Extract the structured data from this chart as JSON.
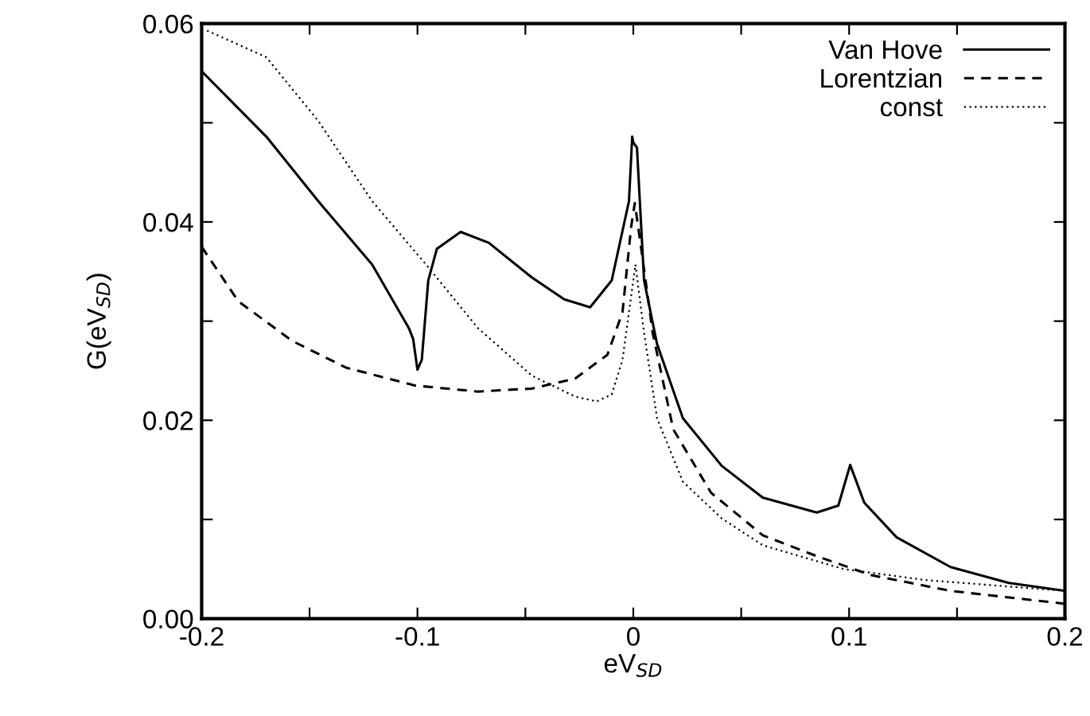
{
  "chart_data": {
    "type": "line",
    "xlabel": "eV$_{SD}$",
    "ylabel": "G(eV$_{SD}$)",
    "xlim": [
      -0.2,
      0.2
    ],
    "ylim": [
      0,
      0.06
    ],
    "xticks": [
      -0.2,
      {
        "value": -0.15,
        "label": null
      },
      -0.1,
      {
        "value": -0.05,
        "label": null
      },
      0,
      {
        "value": 0.05,
        "label": null
      },
      0.1,
      {
        "value": 0.15,
        "label": null
      },
      0.2
    ],
    "yticks": [
      {
        "value": 0,
        "label": "0.00"
      },
      {
        "value": 0.01,
        "label": null
      },
      {
        "value": 0.02,
        "label": "0.02"
      },
      {
        "value": 0.03,
        "label": null
      },
      {
        "value": 0.04,
        "label": "0.04"
      },
      {
        "value": 0.05,
        "label": null
      },
      {
        "value": 0.06,
        "label": "0.06"
      }
    ],
    "grid": false,
    "legend": "top right",
    "series": [
      {
        "name": "Van Hove",
        "color": "#000000",
        "line_style": "solid",
        "x": [
          -0.2,
          -0.17,
          -0.146,
          -0.121,
          -0.104,
          -0.102,
          -0.1,
          -0.098,
          -0.095,
          -0.091,
          -0.08,
          -0.067,
          -0.047,
          -0.032,
          -0.02,
          -0.01,
          -0.002,
          -0.0005,
          0.0,
          0.0017,
          0.005,
          0.011,
          0.023,
          0.041,
          0.06,
          0.085,
          0.095,
          0.1005,
          0.107,
          0.122,
          0.147,
          0.174,
          0.2
        ],
        "values": [
          0.0552,
          0.0486,
          0.0421,
          0.0357,
          0.0293,
          0.0282,
          0.0251,
          0.0261,
          0.0341,
          0.0373,
          0.039,
          0.0379,
          0.0344,
          0.0322,
          0.0314,
          0.0341,
          0.0421,
          0.0486,
          0.048,
          0.0475,
          0.0341,
          0.0277,
          0.0202,
          0.0154,
          0.0122,
          0.0107,
          0.0114,
          0.0155,
          0.0117,
          0.0082,
          0.0052,
          0.0036,
          0.0028
        ]
      },
      {
        "name": "Lorentzian",
        "color": "#000000",
        "line_style": "dashed",
        "x": [
          -0.2,
          -0.183,
          -0.158,
          -0.133,
          -0.101,
          -0.072,
          -0.047,
          -0.027,
          -0.012,
          -0.005,
          -0.001,
          0.0007,
          0.004,
          0.009,
          0.0185,
          0.036,
          0.06,
          0.085,
          0.11,
          0.147,
          0.2
        ],
        "values": [
          0.0375,
          0.032,
          0.028,
          0.0253,
          0.0235,
          0.0229,
          0.0232,
          0.0242,
          0.0266,
          0.0309,
          0.0395,
          0.0419,
          0.0368,
          0.0288,
          0.0191,
          0.0127,
          0.0084,
          0.0063,
          0.0044,
          0.0028,
          0.0015
        ]
      },
      {
        "name": "const",
        "color": "#000000",
        "line_style": "dotted",
        "x": [
          -0.1975,
          -0.17,
          -0.146,
          -0.121,
          -0.096,
          -0.072,
          -0.047,
          -0.027,
          -0.017,
          -0.01,
          -0.005,
          0.0,
          0.001,
          0.005,
          0.011,
          0.023,
          0.041,
          0.06,
          0.0975,
          0.135,
          0.2
        ],
        "values": [
          0.0593,
          0.0566,
          0.0502,
          0.0421,
          0.0357,
          0.0293,
          0.0245,
          0.0224,
          0.0219,
          0.0226,
          0.0261,
          0.0341,
          0.0357,
          0.0288,
          0.0202,
          0.0138,
          0.0101,
          0.0074,
          0.005,
          0.0039,
          0.0028
        ]
      }
    ]
  }
}
